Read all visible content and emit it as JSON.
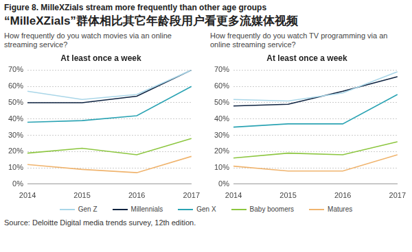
{
  "header": {
    "title": "Figure 8. MilleXZials stream more frequently than other age groups",
    "subtitle": "“MilleXZials”群体相比其它年龄段用户看更多流媒体视频",
    "source": "Source: Deloitte Digital media trends survey, 12th edition."
  },
  "chart_data": [
    {
      "type": "line",
      "title": "How frequently do you watch movies via an online streaming service?",
      "subtitle": "At least once a week",
      "categories": [
        "2014",
        "2015",
        "2016",
        "2017"
      ],
      "series": [
        {
          "name": "Gen Z",
          "color": "#a9d6e8",
          "values": [
            57,
            52,
            55,
            70
          ]
        },
        {
          "name": "Millennials",
          "color": "#0d2240",
          "values": [
            50,
            50,
            54,
            70
          ]
        },
        {
          "name": "Gen X",
          "color": "#2aa3b3",
          "values": [
            38,
            39,
            42,
            60
          ]
        },
        {
          "name": "Baby boomers",
          "color": "#8cc63f",
          "values": [
            19,
            22,
            18,
            28
          ]
        },
        {
          "name": "Matures",
          "color": "#f0b46e",
          "values": [
            12,
            9,
            7,
            17
          ]
        }
      ],
      "ylim": [
        0,
        70
      ],
      "yticks": [
        {
          "value": 0,
          "label": "0%"
        },
        {
          "value": 10,
          "label": "10%"
        },
        {
          "value": 20,
          "label": "20%"
        },
        {
          "value": 30,
          "label": "30%"
        },
        {
          "value": 40,
          "label": "40%"
        },
        {
          "value": 50,
          "label": "50%"
        },
        {
          "value": 60,
          "label": "60%"
        },
        {
          "value": 70,
          "label": "70%"
        }
      ],
      "grid": true,
      "legend": "bottom",
      "marker": "none",
      "line_style": "solid"
    },
    {
      "type": "line",
      "title": "How frequently do you watch TV programming via an online streaming service?",
      "subtitle": "At least once a week",
      "categories": [
        "2014",
        "2015",
        "2016",
        "2017"
      ],
      "series": [
        {
          "name": "Gen Z",
          "color": "#a9d6e8",
          "values": [
            52,
            51,
            56,
            69
          ]
        },
        {
          "name": "Millennials",
          "color": "#0d2240",
          "values": [
            48,
            49,
            57,
            66
          ]
        },
        {
          "name": "Gen X",
          "color": "#2aa3b3",
          "values": [
            35,
            37,
            37,
            55
          ]
        },
        {
          "name": "Baby boomers",
          "color": "#8cc63f",
          "values": [
            16,
            19,
            18,
            26
          ]
        },
        {
          "name": "Matures",
          "color": "#f0b46e",
          "values": [
            11,
            8,
            8,
            18
          ]
        }
      ],
      "ylim": [
        0,
        70
      ],
      "yticks": [
        {
          "value": 0,
          "label": "0%"
        },
        {
          "value": 10,
          "label": "10%"
        },
        {
          "value": 20,
          "label": "20%"
        },
        {
          "value": 30,
          "label": "30%"
        },
        {
          "value": 40,
          "label": "40%"
        },
        {
          "value": 50,
          "label": "50%"
        },
        {
          "value": 60,
          "label": "60%"
        },
        {
          "value": 70,
          "label": "70%"
        }
      ],
      "grid": true,
      "legend": "bottom",
      "marker": "none",
      "line_style": "solid"
    }
  ]
}
